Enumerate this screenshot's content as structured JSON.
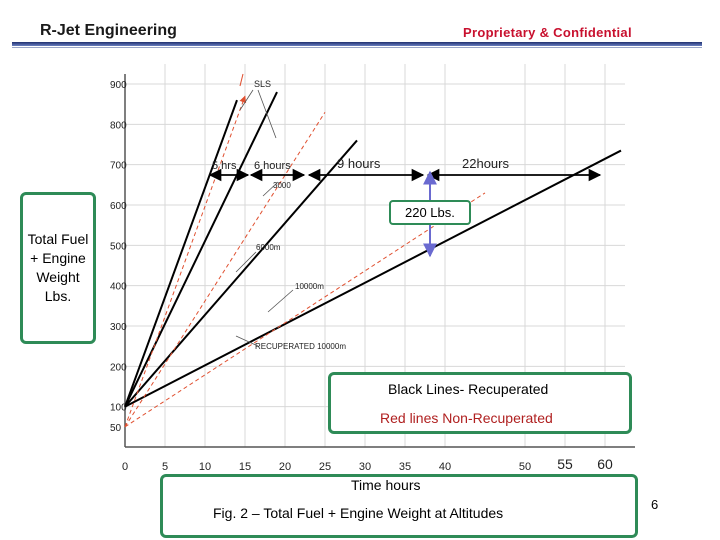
{
  "header": {
    "company": "R-Jet Engineering",
    "confidential": "Proprietary & Confidential"
  },
  "page_number": "6",
  "chart_data": {
    "type": "line",
    "title": "Fig. 2 – Total Fuel + Engine Weight at  Altitudes",
    "xlabel": "Time  hours",
    "ylabel": "Total Fuel + Engine Weight Lbs.",
    "xlim": [
      0,
      60
    ],
    "ylim": [
      0,
      900
    ],
    "x_ticks": [
      "0",
      "5",
      "10",
      "15",
      "20",
      "25",
      "30",
      "35",
      "40",
      "50",
      "55",
      "60"
    ],
    "y_ticks": [
      "50",
      "100",
      "200",
      "300",
      "400",
      "500",
      "600",
      "700",
      "800",
      "900"
    ],
    "grid": true,
    "series": [
      {
        "color": "#000000",
        "group": "Recuperated",
        "points": [
          [
            0,
            100
          ],
          [
            14,
            860
          ]
        ]
      },
      {
        "color": "#000000",
        "group": "Recuperated",
        "points": [
          [
            0,
            100
          ],
          [
            19,
            880
          ]
        ]
      },
      {
        "color": "#000000",
        "group": "Recuperated",
        "points": [
          [
            0,
            100
          ],
          [
            29,
            760
          ]
        ]
      },
      {
        "color": "#000000",
        "group": "Recuperated",
        "points": [
          [
            0,
            100
          ],
          [
            62,
            735
          ]
        ]
      },
      {
        "color": "#e05030",
        "group": "Non-Recuperated",
        "points": [
          [
            0,
            50
          ],
          [
            15,
            870
          ]
        ]
      },
      {
        "color": "#e05030",
        "group": "Non-Recuperated",
        "points": [
          [
            0,
            50
          ],
          [
            25,
            830
          ]
        ]
      },
      {
        "color": "#e05030",
        "group": "Non-Recuperated",
        "points": [
          [
            0,
            50
          ],
          [
            45,
            630
          ]
        ]
      }
    ],
    "annotations": {
      "sls": "SLS",
      "a3000": "3000",
      "a6000": "6000m",
      "a10000": "10000m",
      "recup10000": "RECUPERATED 10000m",
      "hrs5": "5  hrs",
      "hours6": "6 hours",
      "hours9": "9  hours",
      "hours22": "22hours",
      "lbs220": "220 Lbs."
    },
    "legend": {
      "black": "Black Lines-  Recuperated",
      "red": "Red  lines Non-Recuperated"
    }
  },
  "colors": {
    "recuperated": "#000000",
    "non_recuperated": "#e05030",
    "box_border": "#2e8b57",
    "header_rule": "#1f2f6f",
    "weight_arrow": "#6a6ad0"
  }
}
